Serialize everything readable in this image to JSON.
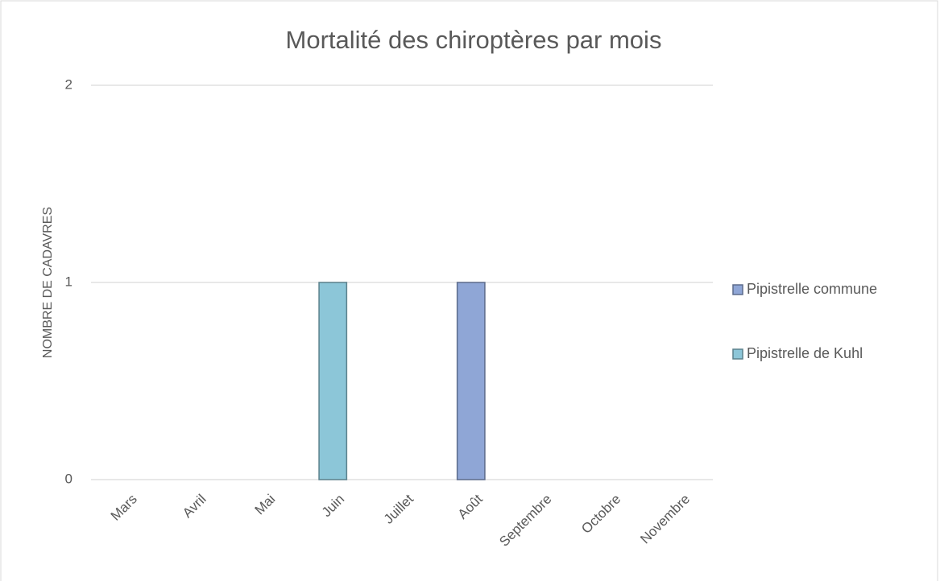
{
  "chart_data": {
    "type": "bar",
    "stacked": true,
    "title": "Mortalité des chiroptères par mois",
    "y_label": "NOMBRE DE CADAVRES",
    "categories": [
      "Mars",
      "Avril",
      "Mai",
      "Juin",
      "Juillet",
      "Août",
      "Septembre",
      "Octobre",
      "Novembre"
    ],
    "series": [
      {
        "name": "Pipistrelle commune",
        "color": "#8fa6d6",
        "values": [
          0,
          0,
          0,
          0,
          0,
          1,
          0,
          0,
          0
        ]
      },
      {
        "name": "Pipistrelle de Kuhl",
        "color": "#8cc6d8",
        "values": [
          0,
          0,
          0,
          1,
          0,
          0,
          0,
          0,
          0
        ]
      }
    ],
    "ylim": [
      0,
      2
    ],
    "yticks": [
      0,
      1,
      2
    ],
    "grid": true,
    "legend": "right"
  }
}
